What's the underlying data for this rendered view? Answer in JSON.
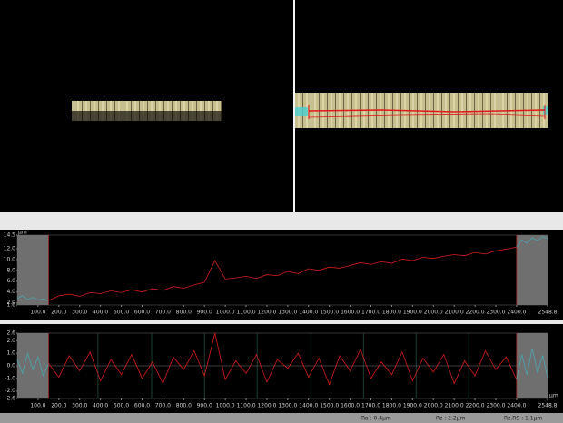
{
  "chart_data": [
    {
      "type": "line",
      "y_unit": "µm",
      "ylim": [
        1.6,
        14.5
      ],
      "xlim": [
        0,
        2548.8
      ],
      "yticks": [
        14.5,
        {
          "value": 12,
          "label": "12.0"
        },
        {
          "value": 10,
          "label": "10.0"
        },
        {
          "value": 8,
          "label": "8.0"
        },
        {
          "value": 6,
          "label": "6.0"
        },
        {
          "value": 4,
          "label": "4.0"
        },
        {
          "value": 2,
          "label": "2.0"
        },
        1.6
      ],
      "xticks": [
        {
          "value": 100,
          "label": "100.0"
        },
        {
          "value": 200,
          "label": "200.0"
        },
        {
          "value": 300,
          "label": "300.0"
        },
        {
          "value": 400,
          "label": "400.0"
        },
        {
          "value": 500,
          "label": "500.0"
        },
        {
          "value": 600,
          "label": "600.0"
        },
        {
          "value": 700,
          "label": "700.0"
        },
        {
          "value": 800,
          "label": "800.0"
        },
        {
          "value": 900,
          "label": "900.0"
        },
        {
          "value": 1000,
          "label": "1000.0"
        },
        {
          "value": 1100,
          "label": "1100.0"
        },
        {
          "value": 1200,
          "label": "1200.0"
        },
        {
          "value": 1300,
          "label": "1300.0"
        },
        {
          "value": 1400,
          "label": "1400.0"
        },
        {
          "value": 1500,
          "label": "1500.0"
        },
        {
          "value": 1600,
          "label": "1600.0"
        },
        {
          "value": 1700,
          "label": "1700.0"
        },
        {
          "value": 1800,
          "label": "1800.0"
        },
        {
          "value": 1900,
          "label": "1900.0"
        },
        {
          "value": 2000,
          "label": "2000.0"
        },
        {
          "value": 2100,
          "label": "2100.0"
        },
        {
          "value": 2200,
          "label": "2200.0"
        },
        {
          "value": 2300,
          "label": "2300.0"
        },
        {
          "value": 2400,
          "label": "2400.0"
        },
        2548.8
      ],
      "masked_ranges": [
        [
          0,
          150
        ],
        [
          2400,
          2548.8
        ]
      ],
      "series": [
        {
          "color": "#4aa8b0",
          "x": [
            0,
            25,
            50,
            75,
            100,
            125,
            150
          ],
          "values": [
            2.8,
            3.3,
            2.6,
            3.0,
            2.5,
            2.7,
            2.4
          ]
        },
        {
          "color": "#d41c1c",
          "x": [
            150,
            200,
            250,
            300,
            350,
            400,
            450,
            500,
            550,
            600,
            650,
            700,
            750,
            800,
            850,
            900,
            950,
            1000,
            1050,
            1100,
            1150,
            1200,
            1250,
            1300,
            1350,
            1400,
            1450,
            1500,
            1550,
            1600,
            1650,
            1700,
            1750,
            1800,
            1850,
            1900,
            1950,
            2000,
            2050,
            2100,
            2150,
            2200,
            2250,
            2300,
            2350,
            2400
          ],
          "values": [
            2.4,
            3.3,
            3.6,
            3.2,
            3.9,
            3.7,
            4.2,
            3.9,
            4.4,
            4.0,
            4.6,
            4.3,
            5.0,
            4.7,
            5.3,
            5.8,
            9.8,
            6.4,
            6.6,
            6.9,
            6.5,
            7.2,
            7.0,
            7.8,
            7.4,
            8.3,
            8.0,
            8.6,
            8.4,
            8.9,
            9.4,
            9.1,
            9.6,
            9.3,
            10.1,
            9.8,
            10.4,
            10.2,
            10.6,
            10.9,
            10.7,
            11.3,
            11.0,
            11.6,
            11.9,
            12.3
          ]
        },
        {
          "color": "#4aa8b0",
          "x": [
            2400,
            2425,
            2450,
            2475,
            2500,
            2525,
            2548.8
          ],
          "values": [
            12.3,
            13.6,
            13.0,
            14.0,
            13.5,
            14.2,
            13.9
          ]
        }
      ]
    },
    {
      "type": "line",
      "x_unit": "µm",
      "ylim": [
        -2.6,
        2.6
      ],
      "xlim": [
        0,
        2548.8
      ],
      "yticks": [
        2.6,
        {
          "value": 2,
          "label": "2.0"
        },
        {
          "value": 1,
          "label": "1.0"
        },
        {
          "value": 0,
          "label": "0.0"
        },
        {
          "value": -1,
          "label": "-1.0"
        },
        {
          "value": -2,
          "label": "-2.0"
        },
        -2.6
      ],
      "xticks": [
        {
          "value": 100,
          "label": "100.0"
        },
        {
          "value": 200,
          "label": "200.0"
        },
        {
          "value": 300,
          "label": "300.0"
        },
        {
          "value": 400,
          "label": "400.0"
        },
        {
          "value": 500,
          "label": "500.0"
        },
        {
          "value": 600,
          "label": "600.0"
        },
        {
          "value": 700,
          "label": "700.0"
        },
        {
          "value": 800,
          "label": "800.0"
        },
        {
          "value": 900,
          "label": "900.0"
        },
        {
          "value": 1000,
          "label": "1000.0"
        },
        {
          "value": 1100,
          "label": "1100.0"
        },
        {
          "value": 1200,
          "label": "1200.0"
        },
        {
          "value": 1300,
          "label": "1300.0"
        },
        {
          "value": 1400,
          "label": "1400.0"
        },
        {
          "value": 1500,
          "label": "1500.0"
        },
        {
          "value": 1600,
          "label": "1600.0"
        },
        {
          "value": 1700,
          "label": "1700.0"
        },
        {
          "value": 1800,
          "label": "1800.0"
        },
        {
          "value": 1900,
          "label": "1900.0"
        },
        {
          "value": 2000,
          "label": "2000.0"
        },
        {
          "value": 2100,
          "label": "2100.0"
        },
        {
          "value": 2200,
          "label": "2200.0"
        },
        {
          "value": 2300,
          "label": "2300.0"
        },
        {
          "value": 2400,
          "label": "2400.0"
        },
        2548.8
      ],
      "masked_ranges": [
        [
          0,
          150
        ],
        [
          2400,
          2548.8
        ]
      ],
      "segment_boundaries": [
        388,
        646,
        900,
        1153,
        1411,
        1664,
        1917,
        2170
      ],
      "series": [
        {
          "color": "#4aa8b0",
          "x": [
            0,
            25,
            50,
            75,
            100,
            125,
            150
          ],
          "values": [
            0.5,
            -0.6,
            1.0,
            -0.3,
            0.7,
            -0.8,
            0.2
          ]
        },
        {
          "color": "#d41c1c",
          "x": [
            150,
            200,
            250,
            300,
            350,
            400,
            450,
            500,
            550,
            600,
            650,
            700,
            750,
            800,
            850,
            900,
            950,
            1000,
            1050,
            1100,
            1150,
            1200,
            1250,
            1300,
            1350,
            1400,
            1450,
            1500,
            1550,
            1600,
            1650,
            1700,
            1750,
            1800,
            1850,
            1900,
            1950,
            2000,
            2050,
            2100,
            2150,
            2200,
            2250,
            2300,
            2350,
            2400
          ],
          "values": [
            0.2,
            -0.9,
            0.8,
            -0.4,
            1.1,
            -1.2,
            0.5,
            -0.7,
            0.9,
            -1.0,
            0.3,
            -1.4,
            0.7,
            -0.3,
            1.2,
            -0.8,
            2.6,
            -1.1,
            0.4,
            -0.6,
            0.9,
            -1.3,
            0.5,
            -0.2,
            1.0,
            -0.9,
            0.6,
            -1.5,
            0.8,
            -0.4,
            1.3,
            -1.0,
            0.3,
            -0.7,
            1.1,
            -1.2,
            0.6,
            -0.5,
            0.9,
            -1.4,
            0.4,
            -0.8,
            1.2,
            -0.3,
            0.7,
            -1.1
          ]
        },
        {
          "color": "#4aa8b0",
          "x": [
            2400,
            2425,
            2450,
            2475,
            2500,
            2525,
            2548.8
          ],
          "values": [
            -1.1,
            0.9,
            -0.7,
            1.4,
            -0.5,
            0.8,
            -0.9
          ]
        }
      ]
    }
  ],
  "status_bar": {
    "items": [
      "Ra : 0.4µm",
      "Rz : 2.2µm",
      "Rz.RS : 1.1µm"
    ]
  }
}
